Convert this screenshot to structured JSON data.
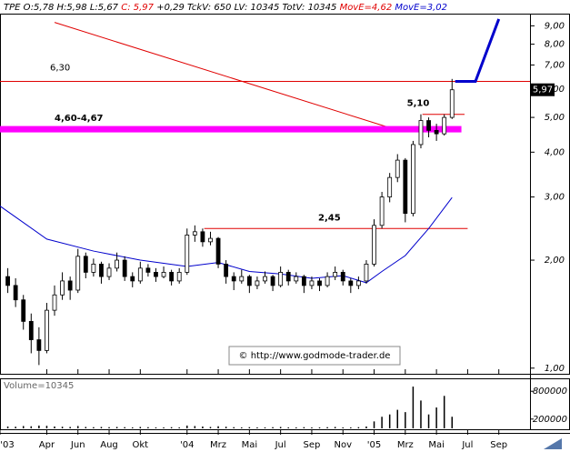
{
  "chart_data": {
    "type": "candlestick",
    "header": [
      {
        "text": "TPE O:5,78 H:5,98 L:5,67 ",
        "color": "#000000"
      },
      {
        "text": "C: 5,97",
        "color": "#e00000"
      },
      {
        "text": " +0,29 TckV: 650 LV: 10345 TotV: 10345 ",
        "color": "#000000"
      },
      {
        "text": "MovE=4,62",
        "color": "#e00000"
      },
      {
        "text": " MovE=3,02",
        "color": "#0000cc"
      }
    ],
    "volume_title": "Volume=10345",
    "watermark": "© http://www.godmode-trader.de",
    "log_scale": true,
    "ylim": [
      0.97,
      10.5
    ],
    "yticks": [
      {
        "value": 1,
        "label": "1,00"
      },
      {
        "value": 2,
        "label": "2,00"
      },
      {
        "value": 3,
        "label": "3,00"
      },
      {
        "value": 4,
        "label": "4,00"
      },
      {
        "value": 5,
        "label": "5,00"
      },
      {
        "value": 6,
        "label": "6,00"
      },
      {
        "value": 7,
        "label": "7,00"
      },
      {
        "value": 8,
        "label": "8,00"
      },
      {
        "value": 9,
        "label": "9,00"
      }
    ],
    "xlim": [
      0,
      34
    ],
    "xticks": [
      {
        "value": 0,
        "label": "'03"
      },
      {
        "value": 3,
        "label": "Apr"
      },
      {
        "value": 5,
        "label": "Jun"
      },
      {
        "value": 7,
        "label": "Aug"
      },
      {
        "value": 9,
        "label": "Okt"
      },
      {
        "value": 12,
        "label": "'04"
      },
      {
        "value": 14,
        "label": "Mrz"
      },
      {
        "value": 16,
        "label": "Mai"
      },
      {
        "value": 18,
        "label": "Jul"
      },
      {
        "value": 20,
        "label": "Sep"
      },
      {
        "value": 22,
        "label": "Nov"
      },
      {
        "value": 24,
        "label": "'05"
      },
      {
        "value": 26,
        "label": "Mrz"
      },
      {
        "value": 28,
        "label": "Mai"
      },
      {
        "value": 30,
        "label": "Jul"
      },
      {
        "value": 32,
        "label": "Sep"
      }
    ],
    "x": [
      0.5,
      1,
      1.5,
      2,
      2.5,
      3,
      3.5,
      4,
      4.5,
      5,
      5.5,
      6,
      6.5,
      7,
      7.5,
      8,
      8.5,
      9,
      9.5,
      10,
      10.5,
      11,
      11.5,
      12,
      12.5,
      13,
      13.5,
      14,
      14.5,
      15,
      15.5,
      16,
      16.5,
      17,
      17.5,
      18,
      18.5,
      19,
      19.5,
      20,
      20.5,
      21,
      21.5,
      22,
      22.5,
      23,
      23.5,
      24,
      24.5,
      25,
      25.5,
      26,
      26.5,
      27,
      27.5,
      28,
      28.5,
      29
    ],
    "ohlc": [
      [
        1.8,
        1.9,
        1.62,
        1.7
      ],
      [
        1.7,
        1.78,
        1.48,
        1.55
      ],
      [
        1.55,
        1.6,
        1.28,
        1.35
      ],
      [
        1.35,
        1.42,
        1.1,
        1.2
      ],
      [
        1.2,
        1.3,
        1.02,
        1.12
      ],
      [
        1.12,
        1.52,
        1.1,
        1.45
      ],
      [
        1.45,
        1.7,
        1.4,
        1.6
      ],
      [
        1.6,
        1.85,
        1.55,
        1.75
      ],
      [
        1.75,
        1.8,
        1.55,
        1.65
      ],
      [
        1.65,
        2.15,
        1.62,
        2.05
      ],
      [
        2.05,
        2.1,
        1.78,
        1.85
      ],
      [
        1.85,
        2.02,
        1.8,
        1.95
      ],
      [
        1.95,
        1.98,
        1.72,
        1.8
      ],
      [
        1.8,
        1.96,
        1.76,
        1.9
      ],
      [
        1.9,
        2.1,
        1.86,
        2.0
      ],
      [
        2.0,
        2.05,
        1.75,
        1.8
      ],
      [
        1.8,
        1.85,
        1.68,
        1.75
      ],
      [
        1.75,
        1.98,
        1.72,
        1.9
      ],
      [
        1.9,
        1.95,
        1.8,
        1.85
      ],
      [
        1.85,
        1.9,
        1.74,
        1.8
      ],
      [
        1.8,
        1.92,
        1.78,
        1.85
      ],
      [
        1.85,
        1.88,
        1.7,
        1.75
      ],
      [
        1.75,
        1.9,
        1.72,
        1.85
      ],
      [
        1.85,
        2.45,
        1.82,
        2.35
      ],
      [
        2.35,
        2.5,
        2.25,
        2.4
      ],
      [
        2.4,
        2.45,
        2.18,
        2.25
      ],
      [
        2.25,
        2.4,
        2.2,
        2.3
      ],
      [
        2.3,
        2.32,
        1.9,
        1.95
      ],
      [
        1.95,
        2.0,
        1.72,
        1.8
      ],
      [
        1.8,
        1.85,
        1.65,
        1.75
      ],
      [
        1.75,
        1.88,
        1.72,
        1.8
      ],
      [
        1.8,
        1.82,
        1.62,
        1.7
      ],
      [
        1.7,
        1.8,
        1.66,
        1.75
      ],
      [
        1.75,
        1.86,
        1.72,
        1.8
      ],
      [
        1.8,
        1.82,
        1.64,
        1.7
      ],
      [
        1.7,
        1.92,
        1.68,
        1.85
      ],
      [
        1.85,
        1.88,
        1.7,
        1.75
      ],
      [
        1.75,
        1.85,
        1.72,
        1.8
      ],
      [
        1.8,
        1.82,
        1.62,
        1.7
      ],
      [
        1.7,
        1.8,
        1.66,
        1.75
      ],
      [
        1.75,
        1.78,
        1.64,
        1.7
      ],
      [
        1.7,
        1.85,
        1.68,
        1.8
      ],
      [
        1.8,
        1.92,
        1.76,
        1.85
      ],
      [
        1.85,
        1.88,
        1.7,
        1.75
      ],
      [
        1.75,
        1.78,
        1.62,
        1.7
      ],
      [
        1.7,
        1.8,
        1.66,
        1.75
      ],
      [
        1.75,
        2.0,
        1.72,
        1.95
      ],
      [
        1.95,
        2.6,
        1.92,
        2.5
      ],
      [
        2.5,
        3.1,
        2.45,
        3.0
      ],
      [
        3.0,
        3.5,
        2.9,
        3.4
      ],
      [
        3.4,
        3.95,
        3.3,
        3.8
      ],
      [
        3.8,
        3.85,
        2.55,
        2.7
      ],
      [
        2.7,
        4.3,
        2.65,
        4.2
      ],
      [
        4.2,
        5.1,
        4.1,
        4.9
      ],
      [
        4.9,
        5.0,
        4.4,
        4.6
      ],
      [
        4.6,
        4.8,
        4.3,
        4.5
      ],
      [
        4.5,
        5.1,
        4.45,
        5.0
      ],
      [
        5.0,
        6.4,
        4.95,
        5.97
      ]
    ],
    "volume": [
      40000,
      35000,
      50000,
      45000,
      60000,
      55000,
      40000,
      35000,
      30000,
      50000,
      30000,
      25000,
      30000,
      25000,
      30000,
      25000,
      20000,
      30000,
      25000,
      20000,
      20000,
      25000,
      20000,
      60000,
      50000,
      40000,
      30000,
      45000,
      35000,
      25000,
      20000,
      25000,
      20000,
      20000,
      25000,
      30000,
      20000,
      20000,
      25000,
      20000,
      20000,
      25000,
      30000,
      20000,
      20000,
      25000,
      40000,
      150000,
      250000,
      300000,
      400000,
      350000,
      900000,
      600000,
      300000,
      450000,
      700000,
      250000
    ],
    "volume_ylim": [
      0,
      1000000
    ],
    "volume_ticks": [
      200000,
      800000
    ],
    "ma": {
      "color": "#0000cc",
      "x": [
        0,
        3,
        6,
        9,
        12,
        14,
        16,
        18,
        20,
        22,
        23.5,
        24.5,
        26,
        27.5,
        29
      ],
      "values": [
        2.83,
        2.29,
        2.12,
        2.0,
        1.92,
        1.97,
        1.86,
        1.83,
        1.78,
        1.81,
        1.73,
        1.86,
        2.06,
        2.45,
        2.99
      ]
    },
    "trendline": {
      "color": "#e00000",
      "x": [
        3.5,
        25.2
      ],
      "values": [
        9.2,
        4.65
      ]
    },
    "projection": {
      "color": "#0000cc",
      "x": [
        29.2,
        30.5,
        32
      ],
      "values": [
        6.3,
        6.3,
        9.4
      ]
    },
    "levels": [
      {
        "label": "6,30",
        "value": 6.3,
        "color": "#e00000",
        "from": 0,
        "to": 34
      },
      {
        "label": "5,10",
        "value": 5.1,
        "color": "#e00000",
        "from": 27.1,
        "to": 29.8
      },
      {
        "label": "2,45",
        "value": 2.45,
        "color": "#e00000",
        "from": 13.1,
        "to": 30.0
      }
    ],
    "zone": {
      "label": "4,60-4,67",
      "low": 4.6,
      "high": 4.67,
      "color": "#ff00ff",
      "from": 0,
      "to": 29.6
    },
    "last": {
      "value": 5.97,
      "label": "5,97"
    }
  }
}
